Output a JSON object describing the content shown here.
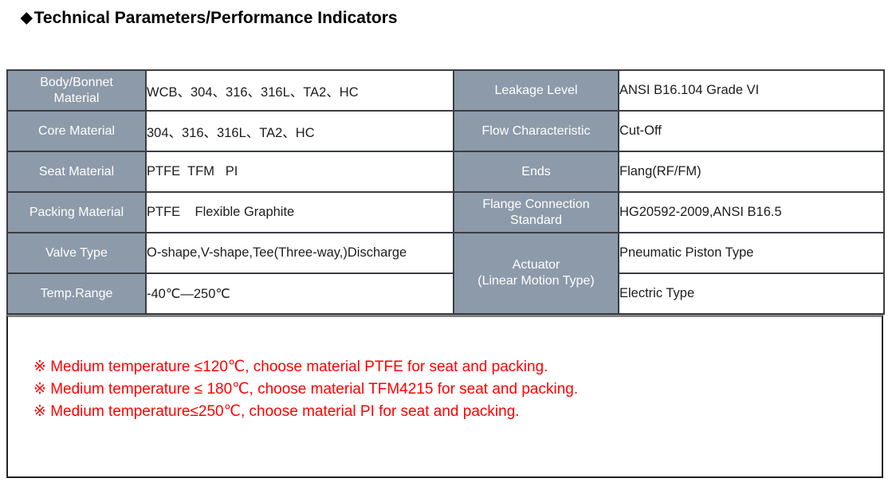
{
  "page": {
    "title": "Technical Parameters/Performance Indicators",
    "title_bullet": "◆"
  },
  "colors": {
    "header_fill": "#8d9aaa",
    "header_text": "#ffffff",
    "table_border": "#3a3d43",
    "value_text": "#1d1d1d",
    "note_text": "#ff0000",
    "title_text": "#000000"
  },
  "table": {
    "rows": [
      {
        "l_label": "Body/Bonnet\nMaterial",
        "l_value": "WCB、304、316、316L、TA2、HC",
        "r_label": "Leakage Level",
        "r_value": "ANSI B16.104 Grade VI"
      },
      {
        "l_label": "Core Material",
        "l_value": "304、316、316L、TA2、HC",
        "r_label": "Flow Characteristic",
        "r_value": "Cut-Off"
      },
      {
        "l_label": "Seat Material",
        "l_value": "PTFE  TFM   PI",
        "r_label": "Ends",
        "r_value": "Flang(RF/FM)"
      },
      {
        "l_label": "Packing Material",
        "l_value": "PTFE    Flexible Graphite",
        "r_label": "Flange Connection\nStandard",
        "r_value": "HG20592-2009,ANSI B16.5"
      },
      {
        "l_label": "Valve Type",
        "l_value": "O-shape,V-shape,Tee(Three-way,)Discharge",
        "r_label": "Actuator\n(Linear Motion Type)",
        "r_value": "Pneumatic Piston Type"
      },
      {
        "l_label": "Temp.Range",
        "l_value": "-40℃—250℃",
        "r_value": "Electric Type"
      }
    ]
  },
  "notes": {
    "lines": [
      "※ Medium temperature ≤120℃, choose material PTFE for seat and packing.",
      "※ Medium temperature ≤ 180℃, choose material TFM4215 for seat and packing.",
      "※ Medium temperature≤250℃, choose material PI for seat and packing."
    ]
  }
}
